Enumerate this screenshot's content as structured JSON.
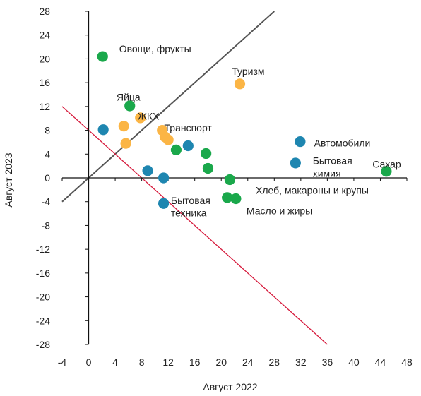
{
  "chart_data": {
    "type": "scatter",
    "xlabel": "Август 2022",
    "ylabel": "Август 2023",
    "xlim": [
      -4,
      48
    ],
    "ylim": [
      -28,
      28
    ],
    "xticks": [
      "-4",
      "0",
      "4",
      "8",
      "12",
      "16",
      "20",
      "24",
      "28",
      "32",
      "36",
      "40",
      "44",
      "48"
    ],
    "yticks": [
      "28",
      "24",
      "20",
      "16",
      "12",
      "8",
      "4",
      "0",
      "-4",
      "-8",
      "-12",
      "-16",
      "-20",
      "-24",
      "-28"
    ],
    "grid": false,
    "colors": {
      "green": "#1aa84b",
      "blue": "#1e86b0",
      "orange": "#fbb545",
      "diagonal": "#555555",
      "boundary": "#d61a3c"
    },
    "lines": [
      {
        "kind": "diagonal",
        "x": [
          -4,
          28
        ],
        "y": [
          -4,
          28
        ],
        "color": "#555555"
      },
      {
        "kind": "boundary",
        "x": [
          -4,
          36
        ],
        "y": [
          12,
          -28
        ],
        "color": "#d61a3c"
      }
    ],
    "points": [
      {
        "x": 2.1,
        "y": 20.4,
        "color": "green"
      },
      {
        "x": 6.2,
        "y": 12.1,
        "color": "green"
      },
      {
        "x": 13.2,
        "y": 4.7,
        "color": "green"
      },
      {
        "x": 17.7,
        "y": 4.1,
        "color": "green"
      },
      {
        "x": 18.0,
        "y": 1.6,
        "color": "green"
      },
      {
        "x": 21.3,
        "y": -0.3,
        "color": "green"
      },
      {
        "x": 20.9,
        "y": -3.3,
        "color": "green"
      },
      {
        "x": 22.2,
        "y": -3.5,
        "color": "green"
      },
      {
        "x": 44.9,
        "y": 1.1,
        "color": "green"
      },
      {
        "x": 2.2,
        "y": 8.1,
        "color": "blue"
      },
      {
        "x": 8.9,
        "y": 1.2,
        "color": "blue"
      },
      {
        "x": 11.3,
        "y": 0.0,
        "color": "blue"
      },
      {
        "x": 11.3,
        "y": -4.3,
        "color": "blue"
      },
      {
        "x": 15.0,
        "y": 5.4,
        "color": "blue"
      },
      {
        "x": 31.2,
        "y": 2.5,
        "color": "blue"
      },
      {
        "x": 31.9,
        "y": 6.1,
        "color": "blue"
      },
      {
        "x": 5.3,
        "y": 8.7,
        "color": "orange"
      },
      {
        "x": 5.6,
        "y": 5.8,
        "color": "orange"
      },
      {
        "x": 7.8,
        "y": 10.1,
        "color": "orange"
      },
      {
        "x": 11.1,
        "y": 8.0,
        "color": "orange"
      },
      {
        "x": 11.5,
        "y": 6.9,
        "color": "orange"
      },
      {
        "x": 12.0,
        "y": 6.4,
        "color": "orange"
      },
      {
        "x": 22.8,
        "y": 15.8,
        "color": "orange"
      }
    ],
    "annotations": [
      {
        "text": "Овощи, фрукты",
        "x": 4.6,
        "y": 21.7
      },
      {
        "text": "Туризм",
        "x": 21.6,
        "y": 17.9
      },
      {
        "text": "Яйца",
        "x": 4.2,
        "y": 13.6
      },
      {
        "text": "ЖКХ",
        "x": 7.4,
        "y": 10.4
      },
      {
        "text": "Транспорт",
        "x": 11.4,
        "y": 8.4
      },
      {
        "text": "Автомобили",
        "x": 34.0,
        "y": 5.9
      },
      {
        "text": "Бытовая",
        "x": 33.8,
        "y": 2.9
      },
      {
        "text": "химия",
        "x": 33.8,
        "y": 0.8
      },
      {
        "text": "Сахар",
        "x": 42.8,
        "y": 2.3
      },
      {
        "text": "Хлеб, макароны и крупы",
        "x": 25.2,
        "y": -2.1
      },
      {
        "text": "Бытовая",
        "x": 12.4,
        "y": -3.8
      },
      {
        "text": "техника",
        "x": 12.4,
        "y": -5.9
      },
      {
        "text": "Масло и жиры",
        "x": 23.8,
        "y": -5.5
      }
    ]
  }
}
